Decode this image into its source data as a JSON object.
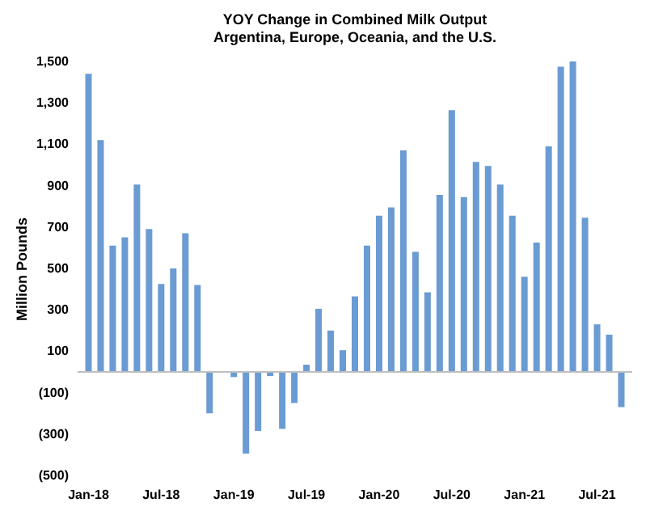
{
  "chart_data": {
    "type": "bar",
    "title": "YOY Change in Combined Milk Output",
    "subtitle": "Argentina, Europe, Oceania, and the U.S.",
    "ylabel": "Million Pounds",
    "categories": [
      "Jan-18",
      null,
      null,
      null,
      null,
      null,
      "Jul-18",
      null,
      null,
      null,
      null,
      null,
      "Jan-19",
      null,
      null,
      null,
      null,
      null,
      "Jul-19",
      null,
      null,
      null,
      null,
      null,
      "Jan-20",
      null,
      null,
      null,
      null,
      null,
      "Jul-20",
      null,
      null,
      null,
      null,
      null,
      "Jan-21",
      null,
      null,
      null,
      null,
      null,
      "Jul-21",
      null,
      null
    ],
    "series": [
      {
        "color": "#6a9bd3",
        "values": [
          1440,
          1120,
          610,
          650,
          905,
          690,
          425,
          500,
          670,
          420,
          -200,
          0,
          -25,
          -395,
          -285,
          -20,
          -275,
          -150,
          35,
          305,
          200,
          105,
          365,
          610,
          755,
          795,
          1070,
          580,
          385,
          855,
          1265,
          845,
          1015,
          995,
          905,
          755,
          460,
          625,
          1090,
          1475,
          1500,
          745,
          230,
          180,
          -170
        ]
      }
    ],
    "ylim": [
      -500,
      1500
    ],
    "yticks": [
      {
        "value": -500,
        "label": "(500)"
      },
      {
        "value": -300,
        "label": "(300)"
      },
      {
        "value": -100,
        "label": "(100)"
      },
      100,
      300,
      500,
      700,
      900,
      {
        "value": 1100,
        "label": "1,100"
      },
      {
        "value": 1300,
        "label": "1,300"
      },
      {
        "value": 1500,
        "label": "1,500"
      }
    ],
    "grid": false
  }
}
